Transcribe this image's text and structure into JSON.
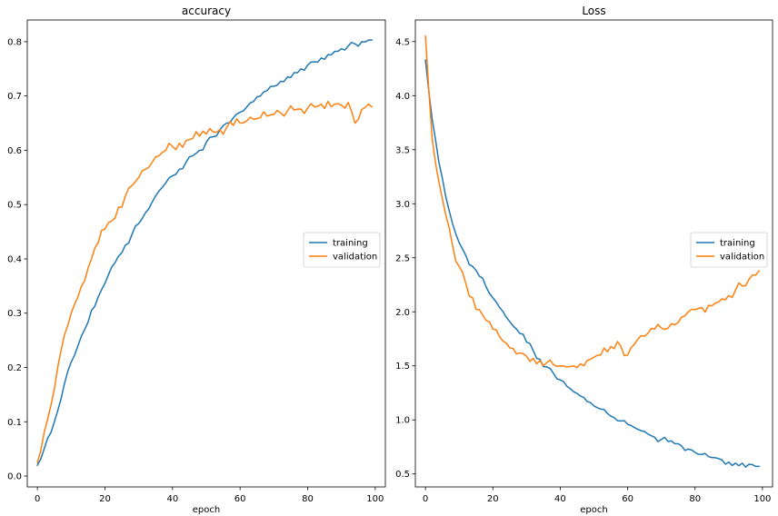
{
  "chart_data": [
    {
      "type": "line",
      "title": "accuracy",
      "xlabel": "epoch",
      "ylabel": "",
      "xlim": [
        -3,
        103
      ],
      "ylim": [
        -0.02,
        0.84
      ],
      "xticks": [
        0,
        20,
        40,
        60,
        80,
        100
      ],
      "xtick_labels": [
        "0",
        "20",
        "40",
        "60",
        "80",
        "100"
      ],
      "yticks": [
        0.0,
        0.1,
        0.2,
        0.3,
        0.4,
        0.5,
        0.6,
        0.7,
        0.8
      ],
      "ytick_labels": [
        "0.0",
        "0.1",
        "0.2",
        "0.3",
        "0.4",
        "0.5",
        "0.6",
        "0.7",
        "0.8"
      ],
      "grid": false,
      "legend_position": "center-right",
      "series": [
        {
          "name": "training",
          "color": "#1f77b4",
          "anchors": [
            [
              0,
              0.02
            ],
            [
              2,
              0.05
            ],
            [
              4,
              0.08
            ],
            [
              6,
              0.12
            ],
            [
              8,
              0.17
            ],
            [
              10,
              0.21
            ],
            [
              12,
              0.24
            ],
            [
              14,
              0.27
            ],
            [
              16,
              0.305
            ],
            [
              18,
              0.33
            ],
            [
              20,
              0.355
            ],
            [
              22,
              0.385
            ],
            [
              24,
              0.405
            ],
            [
              26,
              0.425
            ],
            [
              28,
              0.445
            ],
            [
              30,
              0.465
            ],
            [
              32,
              0.485
            ],
            [
              34,
              0.505
            ],
            [
              36,
              0.525
            ],
            [
              38,
              0.54
            ],
            [
              40,
              0.553
            ],
            [
              42,
              0.565
            ],
            [
              44,
              0.578
            ],
            [
              46,
              0.59
            ],
            [
              48,
              0.6
            ],
            [
              50,
              0.615
            ],
            [
              52,
              0.625
            ],
            [
              54,
              0.637
            ],
            [
              56,
              0.65
            ],
            [
              58,
              0.66
            ],
            [
              60,
              0.67
            ],
            [
              62,
              0.68
            ],
            [
              64,
              0.69
            ],
            [
              66,
              0.7
            ],
            [
              68,
              0.71
            ],
            [
              70,
              0.718
            ],
            [
              72,
              0.727
            ],
            [
              74,
              0.735
            ],
            [
              76,
              0.743
            ],
            [
              78,
              0.75
            ],
            [
              80,
              0.757
            ],
            [
              82,
              0.763
            ],
            [
              84,
              0.77
            ],
            [
              86,
              0.776
            ],
            [
              88,
              0.782
            ],
            [
              90,
              0.787
            ],
            [
              92,
              0.792
            ],
            [
              94,
              0.796
            ],
            [
              96,
              0.8
            ],
            [
              98,
              0.803
            ],
            [
              99,
              0.803
            ]
          ]
        },
        {
          "name": "validation",
          "color": "#ff7f0e",
          "anchors": [
            [
              0,
              0.025
            ],
            [
              2,
              0.08
            ],
            [
              4,
              0.13
            ],
            [
              6,
              0.2
            ],
            [
              8,
              0.26
            ],
            [
              10,
              0.3
            ],
            [
              12,
              0.33
            ],
            [
              14,
              0.36
            ],
            [
              16,
              0.4
            ],
            [
              18,
              0.43
            ],
            [
              20,
              0.455
            ],
            [
              22,
              0.47
            ],
            [
              24,
              0.495
            ],
            [
              26,
              0.515
            ],
            [
              28,
              0.535
            ],
            [
              30,
              0.55
            ],
            [
              32,
              0.565
            ],
            [
              34,
              0.578
            ],
            [
              36,
              0.59
            ],
            [
              38,
              0.6
            ],
            [
              40,
              0.607
            ],
            [
              42,
              0.613
            ],
            [
              44,
              0.618
            ],
            [
              46,
              0.622
            ],
            [
              48,
              0.626
            ],
            [
              50,
              0.63
            ],
            [
              52,
              0.634
            ],
            [
              54,
              0.638
            ],
            [
              56,
              0.642
            ],
            [
              58,
              0.646
            ],
            [
              60,
              0.65
            ],
            [
              62,
              0.654
            ],
            [
              64,
              0.657
            ],
            [
              66,
              0.66
            ],
            [
              68,
              0.663
            ],
            [
              70,
              0.666
            ],
            [
              72,
              0.669
            ],
            [
              74,
              0.672
            ],
            [
              76,
              0.674
            ],
            [
              78,
              0.676
            ],
            [
              80,
              0.678
            ],
            [
              82,
              0.68
            ],
            [
              84,
              0.685
            ],
            [
              86,
              0.69
            ],
            [
              88,
              0.685
            ],
            [
              90,
              0.683
            ],
            [
              92,
              0.688
            ],
            [
              94,
              0.65
            ],
            [
              96,
              0.675
            ],
            [
              98,
              0.685
            ],
            [
              99,
              0.68
            ]
          ]
        }
      ]
    },
    {
      "type": "line",
      "title": "Loss",
      "xlabel": "epoch",
      "ylabel": "",
      "xlim": [
        -3,
        103
      ],
      "ylim": [
        0.38,
        4.7
      ],
      "xticks": [
        0,
        20,
        40,
        60,
        80,
        100
      ],
      "xtick_labels": [
        "0",
        "20",
        "40",
        "60",
        "80",
        "100"
      ],
      "yticks": [
        0.5,
        1.0,
        1.5,
        2.0,
        2.5,
        3.0,
        3.5,
        4.0,
        4.5
      ],
      "ytick_labels": [
        "0.5",
        "1.0",
        "1.5",
        "2.0",
        "2.5",
        "3.0",
        "3.5",
        "4.0",
        "4.5"
      ],
      "grid": false,
      "legend_position": "center-right",
      "series": [
        {
          "name": "training",
          "color": "#1f77b4",
          "anchors": [
            [
              0,
              4.33
            ],
            [
              2,
              3.78
            ],
            [
              4,
              3.38
            ],
            [
              6,
              3.07
            ],
            [
              8,
              2.82
            ],
            [
              10,
              2.64
            ],
            [
              12,
              2.52
            ],
            [
              14,
              2.42
            ],
            [
              16,
              2.33
            ],
            [
              18,
              2.23
            ],
            [
              20,
              2.13
            ],
            [
              22,
              2.04
            ],
            [
              24,
              1.95
            ],
            [
              26,
              1.87
            ],
            [
              28,
              1.8
            ],
            [
              30,
              1.72
            ],
            [
              32,
              1.64
            ],
            [
              34,
              1.56
            ],
            [
              36,
              1.49
            ],
            [
              38,
              1.43
            ],
            [
              40,
              1.37
            ],
            [
              42,
              1.31
            ],
            [
              44,
              1.26
            ],
            [
              46,
              1.22
            ],
            [
              48,
              1.17
            ],
            [
              50,
              1.13
            ],
            [
              52,
              1.1
            ],
            [
              54,
              1.06
            ],
            [
              56,
              1.02
            ],
            [
              58,
              0.99
            ],
            [
              60,
              0.96
            ],
            [
              62,
              0.93
            ],
            [
              64,
              0.9
            ],
            [
              66,
              0.87
            ],
            [
              68,
              0.84
            ],
            [
              70,
              0.82
            ],
            [
              72,
              0.8
            ],
            [
              74,
              0.78
            ],
            [
              76,
              0.76
            ],
            [
              78,
              0.73
            ],
            [
              80,
              0.7
            ],
            [
              82,
              0.68
            ],
            [
              84,
              0.66
            ],
            [
              86,
              0.65
            ],
            [
              88,
              0.63
            ],
            [
              90,
              0.61
            ],
            [
              92,
              0.6
            ],
            [
              94,
              0.6
            ],
            [
              96,
              0.59
            ],
            [
              98,
              0.57
            ],
            [
              99,
              0.57
            ]
          ]
        },
        {
          "name": "validation",
          "color": "#ff7f0e",
          "anchors": [
            [
              0,
              4.55
            ],
            [
              2,
              3.6
            ],
            [
              4,
              3.2
            ],
            [
              6,
              2.9
            ],
            [
              8,
              2.62
            ],
            [
              10,
              2.42
            ],
            [
              12,
              2.26
            ],
            [
              14,
              2.13
            ],
            [
              16,
              2.02
            ],
            [
              18,
              1.92
            ],
            [
              20,
              1.84
            ],
            [
              22,
              1.77
            ],
            [
              24,
              1.71
            ],
            [
              26,
              1.66
            ],
            [
              28,
              1.62
            ],
            [
              30,
              1.59
            ],
            [
              32,
              1.57
            ],
            [
              34,
              1.55
            ],
            [
              36,
              1.53
            ],
            [
              38,
              1.51
            ],
            [
              40,
              1.5
            ],
            [
              42,
              1.49
            ],
            [
              44,
              1.5
            ],
            [
              46,
              1.52
            ],
            [
              48,
              1.55
            ],
            [
              50,
              1.58
            ],
            [
              52,
              1.6
            ],
            [
              54,
              1.63
            ],
            [
              56,
              1.66
            ],
            [
              58,
              1.68
            ],
            [
              60,
              1.6
            ],
            [
              62,
              1.7
            ],
            [
              64,
              1.78
            ],
            [
              66,
              1.8
            ],
            [
              68,
              1.84
            ],
            [
              70,
              1.85
            ],
            [
              72,
              1.85
            ],
            [
              74,
              1.88
            ],
            [
              76,
              1.95
            ],
            [
              78,
              2.0
            ],
            [
              80,
              2.02
            ],
            [
              82,
              2.04
            ],
            [
              84,
              2.06
            ],
            [
              86,
              2.08
            ],
            [
              88,
              2.12
            ],
            [
              90,
              2.15
            ],
            [
              92,
              2.2
            ],
            [
              94,
              2.24
            ],
            [
              96,
              2.3
            ],
            [
              98,
              2.34
            ],
            [
              99,
              2.38
            ]
          ]
        }
      ]
    }
  ]
}
